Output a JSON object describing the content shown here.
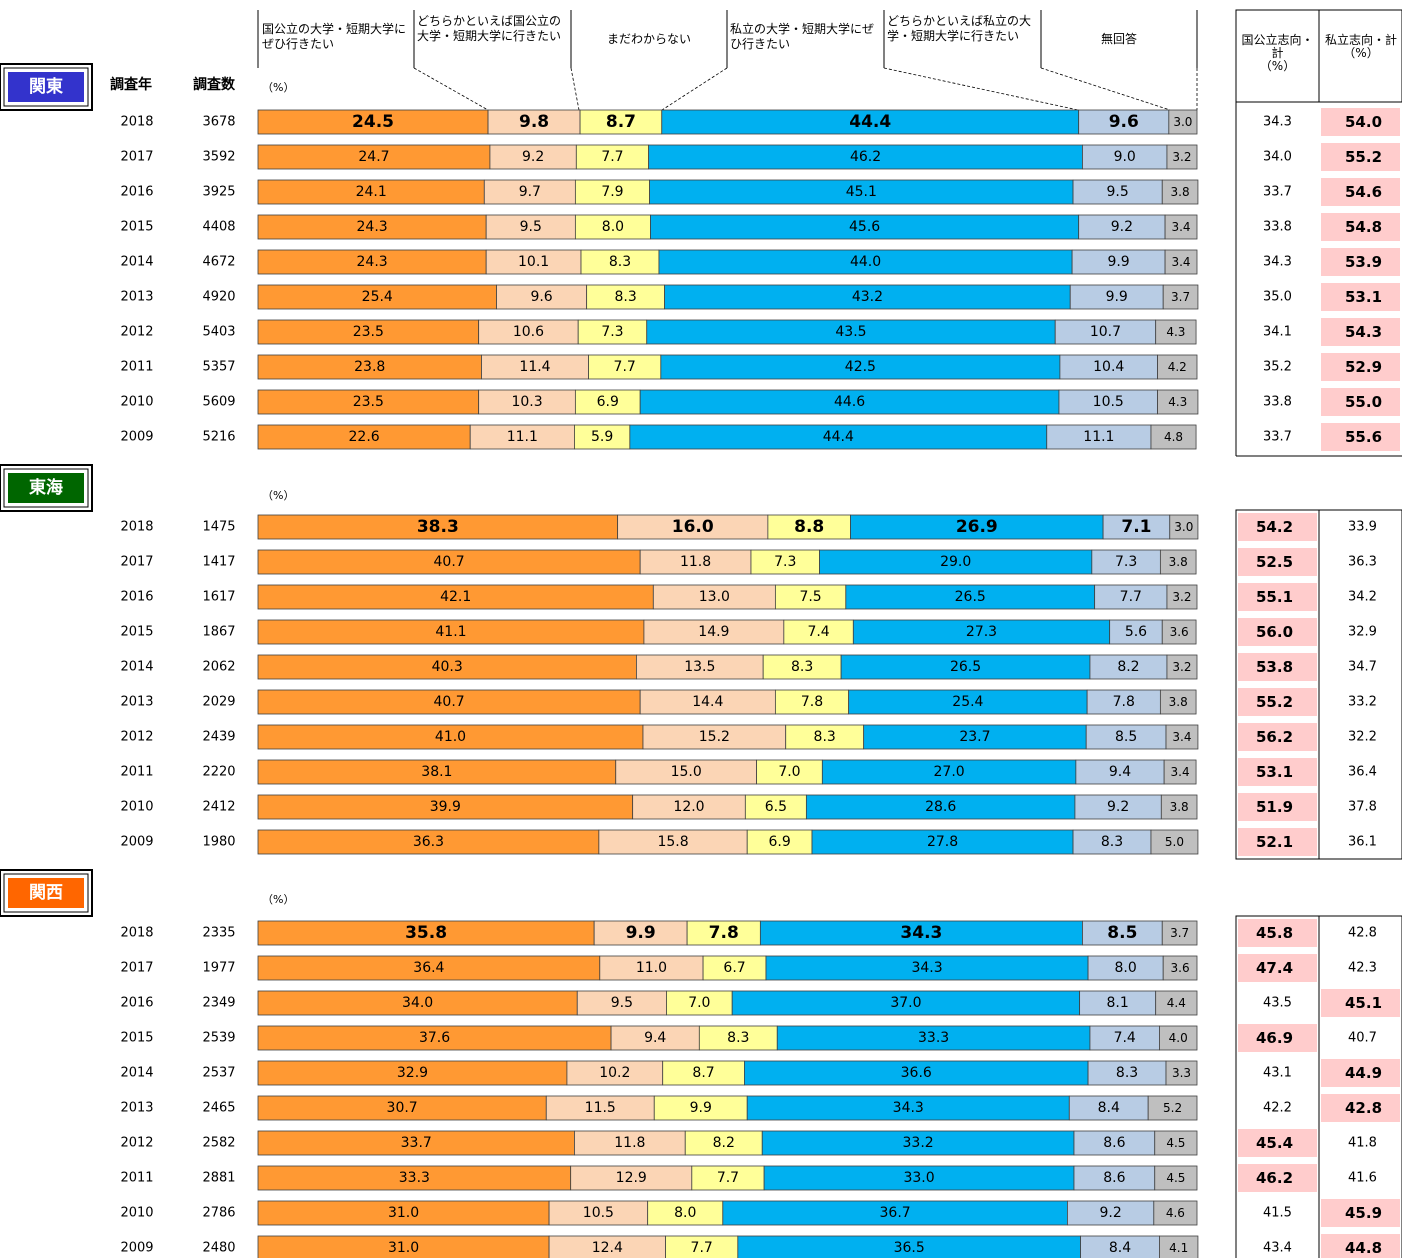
{
  "headers": {
    "legend": [
      "国公立の大学・短期大学にぜひ行きたい",
      "どちらかといえば国公立の大学・短期大学に行きたい",
      "まだわからない",
      "私立の大学・短期大学にぜひ行きたい",
      "どちらかといえば私立の大学・短期大学に行きたい",
      "無回答"
    ],
    "col_year": "調査年",
    "col_count": "調査数",
    "unit": "（%）",
    "sum_national": "国公立志向・計\n（%）",
    "sum_private": "私立志向・計\n（%）"
  },
  "colors": {
    "orange": "#FF9933",
    "peach": "#FBD5B5",
    "yellow": "#FFFF99",
    "blue": "#00B0F0",
    "lightblue": "#B8CCE4",
    "gray": "#BFBFBF",
    "pink": "#FFCCCC",
    "kanto": "#3333CC",
    "tokai": "#006600",
    "kansai": "#FF6600"
  },
  "chart_data": {
    "type": "bar",
    "orientation": "horizontal-stacked-100",
    "series_names": [
      "国公立の大学・短期大学にぜひ行きたい",
      "どちらかといえば国公立の大学・短期大学に行きたい",
      "まだわからない",
      "私立の大学・短期大学にぜひ行きたい",
      "どちらかといえば私立の大学・短期大学に行きたい",
      "無回答"
    ],
    "regions": [
      {
        "name": "関東",
        "summary_highlight": "private",
        "rows": [
          {
            "year": "2018",
            "n": "3678",
            "values": [
              24.5,
              9.8,
              8.7,
              44.4,
              9.6,
              3.0
            ],
            "national": "34.3",
            "private": "54.0"
          },
          {
            "year": "2017",
            "n": "3592",
            "values": [
              24.7,
              9.2,
              7.7,
              46.2,
              9.0,
              3.2
            ],
            "national": "34.0",
            "private": "55.2"
          },
          {
            "year": "2016",
            "n": "3925",
            "values": [
              24.1,
              9.7,
              7.9,
              45.1,
              9.5,
              3.8
            ],
            "national": "33.7",
            "private": "54.6"
          },
          {
            "year": "2015",
            "n": "4408",
            "values": [
              24.3,
              9.5,
              8.0,
              45.6,
              9.2,
              3.4
            ],
            "national": "33.8",
            "private": "54.8"
          },
          {
            "year": "2014",
            "n": "4672",
            "values": [
              24.3,
              10.1,
              8.3,
              44.0,
              9.9,
              3.4
            ],
            "national": "34.3",
            "private": "53.9"
          },
          {
            "year": "2013",
            "n": "4920",
            "values": [
              25.4,
              9.6,
              8.3,
              43.2,
              9.9,
              3.7
            ],
            "national": "35.0",
            "private": "53.1"
          },
          {
            "year": "2012",
            "n": "5403",
            "values": [
              23.5,
              10.6,
              7.3,
              43.5,
              10.7,
              4.3
            ],
            "national": "34.1",
            "private": "54.3"
          },
          {
            "year": "2011",
            "n": "5357",
            "values": [
              23.8,
              11.4,
              7.7,
              42.5,
              10.4,
              4.2
            ],
            "national": "35.2",
            "private": "52.9"
          },
          {
            "year": "2010",
            "n": "5609",
            "values": [
              23.5,
              10.3,
              6.9,
              44.6,
              10.5,
              4.3
            ],
            "national": "33.8",
            "private": "55.0"
          },
          {
            "year": "2009",
            "n": "5216",
            "values": [
              22.6,
              11.1,
              5.9,
              44.4,
              11.1,
              4.8
            ],
            "national": "33.7",
            "private": "55.6"
          }
        ]
      },
      {
        "name": "東海",
        "summary_highlight": "national",
        "rows": [
          {
            "year": "2018",
            "n": "1475",
            "values": [
              38.3,
              16.0,
              8.8,
              26.9,
              7.1,
              3.0
            ],
            "national": "54.2",
            "private": "33.9"
          },
          {
            "year": "2017",
            "n": "1417",
            "values": [
              40.7,
              11.8,
              7.3,
              29.0,
              7.3,
              3.8
            ],
            "national": "52.5",
            "private": "36.3"
          },
          {
            "year": "2016",
            "n": "1617",
            "values": [
              42.1,
              13.0,
              7.5,
              26.5,
              7.7,
              3.2
            ],
            "national": "55.1",
            "private": "34.2"
          },
          {
            "year": "2015",
            "n": "1867",
            "values": [
              41.1,
              14.9,
              7.4,
              27.3,
              5.6,
              3.6
            ],
            "national": "56.0",
            "private": "32.9"
          },
          {
            "year": "2014",
            "n": "2062",
            "values": [
              40.3,
              13.5,
              8.3,
              26.5,
              8.2,
              3.2
            ],
            "national": "53.8",
            "private": "34.7"
          },
          {
            "year": "2013",
            "n": "2029",
            "values": [
              40.7,
              14.4,
              7.8,
              25.4,
              7.8,
              3.8
            ],
            "national": "55.2",
            "private": "33.2"
          },
          {
            "year": "2012",
            "n": "2439",
            "values": [
              41.0,
              15.2,
              8.3,
              23.7,
              8.5,
              3.4
            ],
            "national": "56.2",
            "private": "32.2"
          },
          {
            "year": "2011",
            "n": "2220",
            "values": [
              38.1,
              15.0,
              7.0,
              27.0,
              9.4,
              3.4
            ],
            "national": "53.1",
            "private": "36.4"
          },
          {
            "year": "2010",
            "n": "2412",
            "values": [
              39.9,
              12.0,
              6.5,
              28.6,
              9.2,
              3.8
            ],
            "national": "51.9",
            "private": "37.8"
          },
          {
            "year": "2009",
            "n": "1980",
            "values": [
              36.3,
              15.8,
              6.9,
              27.8,
              8.3,
              5.0
            ],
            "national": "52.1",
            "private": "36.1"
          }
        ]
      },
      {
        "name": "関西",
        "summary_highlight": "max",
        "rows": [
          {
            "year": "2018",
            "n": "2335",
            "values": [
              35.8,
              9.9,
              7.8,
              34.3,
              8.5,
              3.7
            ],
            "national": "45.8",
            "private": "42.8"
          },
          {
            "year": "2017",
            "n": "1977",
            "values": [
              36.4,
              11.0,
              6.7,
              34.3,
              8.0,
              3.6
            ],
            "national": "47.4",
            "private": "42.3"
          },
          {
            "year": "2016",
            "n": "2349",
            "values": [
              34.0,
              9.5,
              7.0,
              37.0,
              8.1,
              4.4
            ],
            "national": "43.5",
            "private": "45.1"
          },
          {
            "year": "2015",
            "n": "2539",
            "values": [
              37.6,
              9.4,
              8.3,
              33.3,
              7.4,
              4.0
            ],
            "national": "46.9",
            "private": "40.7"
          },
          {
            "year": "2014",
            "n": "2537",
            "values": [
              32.9,
              10.2,
              8.7,
              36.6,
              8.3,
              3.3
            ],
            "national": "43.1",
            "private": "44.9"
          },
          {
            "year": "2013",
            "n": "2465",
            "values": [
              30.7,
              11.5,
              9.9,
              34.3,
              8.4,
              5.2
            ],
            "national": "42.2",
            "private": "42.8"
          },
          {
            "year": "2012",
            "n": "2582",
            "values": [
              33.7,
              11.8,
              8.2,
              33.2,
              8.6,
              4.5
            ],
            "national": "45.4",
            "private": "41.8"
          },
          {
            "year": "2011",
            "n": "2881",
            "values": [
              33.3,
              12.9,
              7.7,
              33.0,
              8.6,
              4.5
            ],
            "national": "46.2",
            "private": "41.6"
          },
          {
            "year": "2010",
            "n": "2786",
            "values": [
              31.0,
              10.5,
              8.0,
              36.7,
              9.2,
              4.6
            ],
            "national": "41.5",
            "private": "45.9"
          },
          {
            "year": "2009",
            "n": "2480",
            "values": [
              31.0,
              12.4,
              7.7,
              36.5,
              8.4,
              4.1
            ],
            "national": "43.4",
            "private": "44.8"
          }
        ]
      }
    ]
  }
}
